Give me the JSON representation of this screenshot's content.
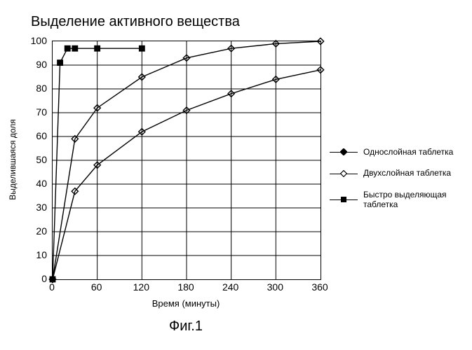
{
  "chart": {
    "type": "line",
    "title": "Выделение активного вещества",
    "title_fontsize": 20,
    "xlabel": "Время (минуты)",
    "ylabel": "Выделившаяся доля",
    "label_fontsize": 13,
    "tick_fontsize": 14,
    "xlim": [
      0,
      360
    ],
    "ylim": [
      0,
      100
    ],
    "xticks": [
      0,
      60,
      120,
      180,
      240,
      300,
      360
    ],
    "yticks": [
      0,
      10,
      20,
      30,
      40,
      50,
      60,
      70,
      80,
      90,
      100
    ],
    "grid_color": "#000000",
    "background_color": "#ffffff",
    "line_color": "#000000",
    "line_width": 1.4,
    "marker_size": 6,
    "series": [
      {
        "name": "Однослойная таблетка",
        "marker": "diamond-filled",
        "marker_fill": "#000000",
        "marker_stroke": "#000000",
        "x": [
          0,
          30,
          60,
          120,
          180,
          240,
          300,
          360
        ],
        "y": [
          0,
          37,
          48,
          62,
          71,
          78,
          84,
          88
        ]
      },
      {
        "name": "Двухслойная таблетка",
        "marker": "diamond-open",
        "marker_fill": "#ffffff",
        "marker_stroke": "#000000",
        "x": [
          0,
          30,
          60,
          120,
          180,
          240,
          300,
          360
        ],
        "y": [
          0,
          59,
          72,
          85,
          93,
          97,
          99,
          100
        ]
      },
      {
        "name": "Быстро выделяющая таблетка",
        "marker": "square-filled",
        "marker_fill": "#000000",
        "marker_stroke": "#000000",
        "x": [
          0,
          10,
          20,
          30,
          60,
          120
        ],
        "y": [
          0,
          91,
          97,
          97,
          97,
          97
        ]
      }
    ]
  },
  "caption": "Фиг.1"
}
